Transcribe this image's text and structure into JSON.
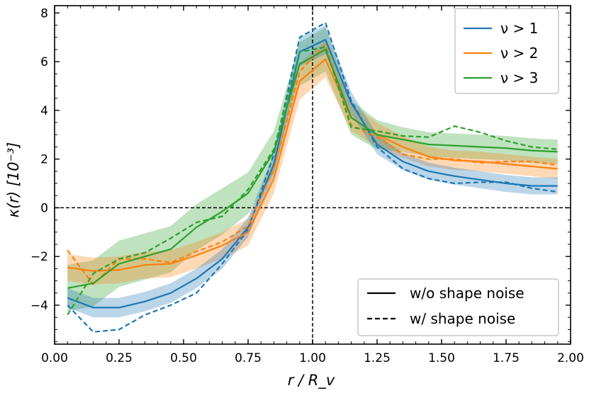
{
  "chart_data": {
    "type": "line",
    "title": "",
    "xlabel": "r / R_v",
    "ylabel": "κ(r) [10⁻³]",
    "xlim": [
      0.0,
      2.0
    ],
    "ylim": [
      -5.6,
      8.3
    ],
    "x_ticks": [
      0.0,
      0.25,
      0.5,
      0.75,
      1.0,
      1.25,
      1.5,
      1.75,
      2.0
    ],
    "x_tick_labels": [
      "0.00",
      "0.25",
      "0.50",
      "0.75",
      "1.00",
      "1.25",
      "1.50",
      "1.75",
      "2.00"
    ],
    "y_ticks": [
      -4,
      -2,
      0,
      2,
      4,
      6,
      8
    ],
    "y_tick_labels": [
      "−4",
      "−2",
      "0",
      "2",
      "4",
      "6",
      "8"
    ],
    "reference_lines": {
      "horizontal_y": 0,
      "vertical_x": 1.0
    },
    "x": [
      0.05,
      0.15,
      0.25,
      0.35,
      0.45,
      0.55,
      0.65,
      0.75,
      0.85,
      0.95,
      1.05,
      1.15,
      1.25,
      1.35,
      1.45,
      1.55,
      1.65,
      1.75,
      1.85,
      1.95
    ],
    "series": [
      {
        "name": "ν > 1",
        "color": "#1f77b4",
        "values": [
          -3.7,
          -4.1,
          -4.1,
          -3.85,
          -3.5,
          -2.9,
          -2.1,
          -0.8,
          1.8,
          6.4,
          6.9,
          4.3,
          2.6,
          1.9,
          1.5,
          1.3,
          1.15,
          1.0,
          0.9,
          0.9
        ],
        "band_halfwidth": [
          0.4,
          0.4,
          0.4,
          0.4,
          0.4,
          0.4,
          0.4,
          0.4,
          0.45,
          0.6,
          0.6,
          0.45,
          0.4,
          0.35,
          0.35,
          0.35,
          0.35,
          0.35,
          0.35,
          0.35
        ],
        "noisy_values": [
          -4.0,
          -5.1,
          -5.0,
          -4.4,
          -4.0,
          -3.5,
          -2.3,
          -0.9,
          2.2,
          7.0,
          7.6,
          4.4,
          2.5,
          1.6,
          1.2,
          1.0,
          1.05,
          1.05,
          0.8,
          0.65
        ]
      },
      {
        "name": "ν > 2",
        "color": "#ff7f0e",
        "values": [
          -2.45,
          -2.6,
          -2.55,
          -2.35,
          -2.3,
          -1.95,
          -1.55,
          -1.0,
          1.2,
          5.2,
          6.1,
          3.7,
          3.0,
          2.5,
          2.1,
          1.95,
          1.9,
          1.8,
          1.7,
          1.6
        ],
        "band_halfwidth": [
          0.55,
          0.55,
          0.55,
          0.55,
          0.55,
          0.55,
          0.55,
          0.55,
          0.6,
          0.75,
          0.75,
          0.55,
          0.5,
          0.45,
          0.4,
          0.4,
          0.4,
          0.4,
          0.4,
          0.4
        ],
        "noisy_values": [
          -1.75,
          -3.15,
          -2.1,
          -2.1,
          -2.25,
          -1.8,
          -1.4,
          -0.75,
          1.6,
          5.6,
          6.7,
          3.4,
          2.9,
          2.2,
          2.0,
          2.0,
          1.85,
          1.9,
          1.9,
          1.75
        ]
      },
      {
        "name": "ν > 3",
        "color": "#2ca02c",
        "values": [
          -3.3,
          -3.1,
          -2.3,
          -2.0,
          -1.7,
          -0.8,
          -0.15,
          0.6,
          2.3,
          5.9,
          6.5,
          3.7,
          3.0,
          2.8,
          2.6,
          2.55,
          2.5,
          2.45,
          2.35,
          2.3
        ],
        "band_halfwidth": [
          0.95,
          0.95,
          0.95,
          0.95,
          0.95,
          0.95,
          0.95,
          0.85,
          0.85,
          0.9,
          0.9,
          0.7,
          0.6,
          0.5,
          0.5,
          0.5,
          0.5,
          0.5,
          0.5,
          0.5
        ],
        "noisy_values": [
          -4.4,
          -2.7,
          -2.1,
          -1.85,
          -1.25,
          -0.6,
          -0.35,
          0.75,
          2.4,
          6.4,
          6.6,
          3.3,
          3.15,
          2.95,
          2.9,
          3.35,
          3.1,
          2.75,
          2.5,
          2.4
        ]
      }
    ],
    "legend_series": {
      "position": "top-right",
      "entries": [
        "ν > 1",
        "ν > 2",
        "ν > 3"
      ]
    },
    "legend_style": {
      "position": "bottom-right",
      "entries": [
        {
          "label": "w/o shape noise",
          "style": "solid"
        },
        {
          "label": "w/ shape noise",
          "style": "dashed"
        }
      ]
    }
  }
}
